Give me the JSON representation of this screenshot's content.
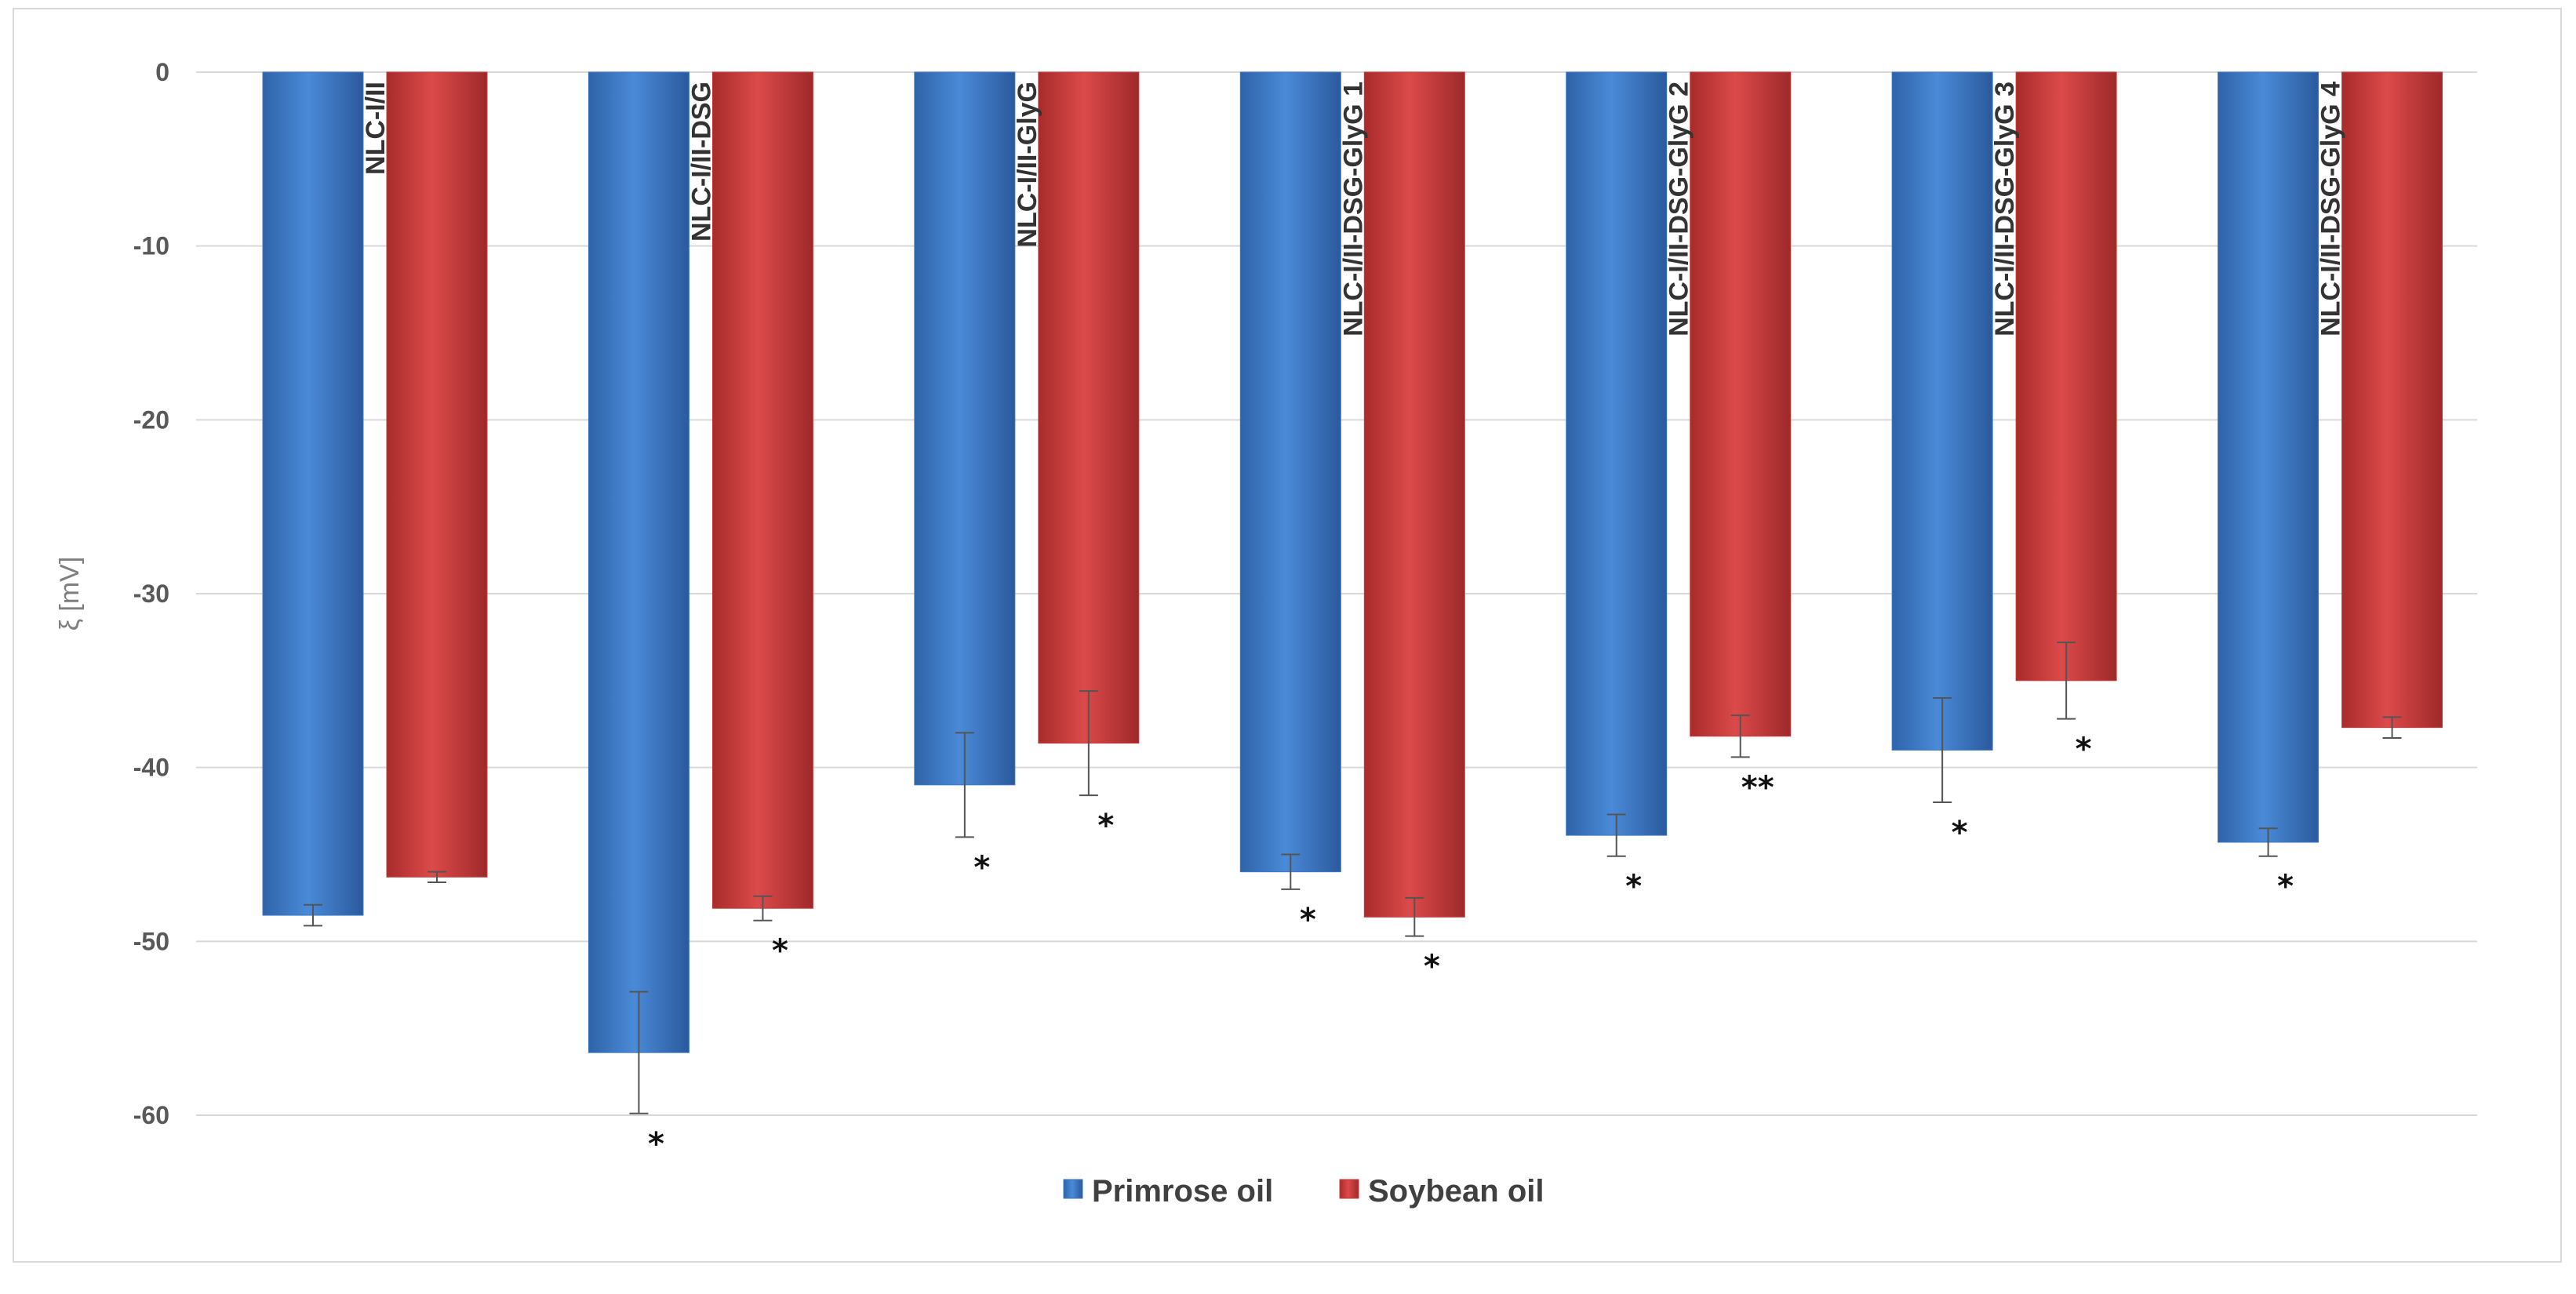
{
  "chart_data": {
    "type": "bar",
    "title": "",
    "xlabel": "",
    "ylabel": "ξ [mV]",
    "ylim": [
      -60,
      0
    ],
    "yticks": [
      0,
      -10,
      -20,
      -30,
      -40,
      -50,
      -60
    ],
    "grid": true,
    "legend_position": "bottom",
    "categories": [
      "NLC-I/II",
      "NLC-I/II-DSG",
      "NLC-I/II-GlyG",
      "NLC-I/II-DSG-GlyG 1",
      "NLC-I/II-DSG-GlyG 2",
      "NLC-I/II-DSG-GlyG 3",
      "NLC-I/II-DSG-GlyG 4"
    ],
    "series": [
      {
        "name": "Primrose oil",
        "color": "#3b78c9",
        "values": [
          -48.5,
          -56.4,
          -41.0,
          -46.0,
          -43.9,
          -39.0,
          -44.3
        ],
        "errors": [
          0.6,
          3.5,
          3.0,
          1.0,
          1.2,
          3.0,
          0.8
        ],
        "significance": [
          "",
          "*",
          "*",
          "*",
          "*",
          "*",
          "*"
        ]
      },
      {
        "name": "Soybean oil",
        "color": "#c93a3a",
        "values": [
          -46.3,
          -48.1,
          -38.6,
          -48.6,
          -38.2,
          -35.0,
          -37.7
        ],
        "errors": [
          0.3,
          0.7,
          3.0,
          1.1,
          1.2,
          2.2,
          0.6
        ],
        "significance": [
          "",
          "*",
          "*",
          "*",
          "**",
          "*",
          ""
        ]
      }
    ]
  }
}
